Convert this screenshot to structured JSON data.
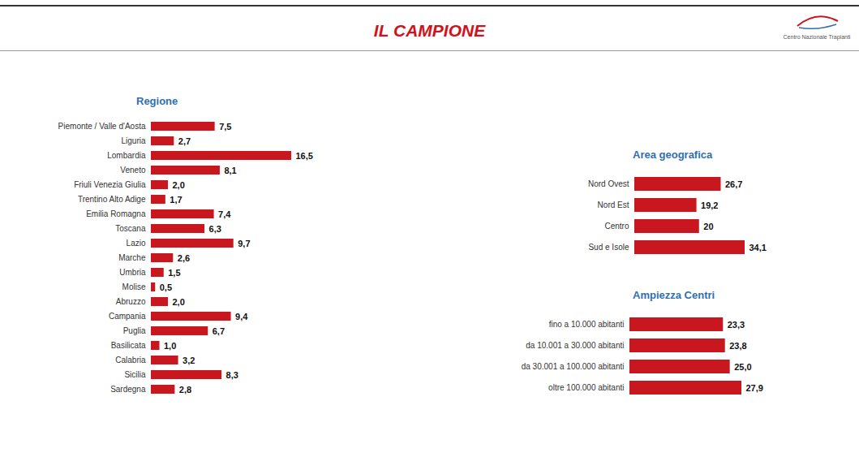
{
  "title": "IL CAMPIONE",
  "logo_text": "Centro Nazionale Trapianti",
  "chart_data": [
    {
      "type": "bar",
      "orientation": "horizontal",
      "title": "Regione",
      "categories": [
        "Piemonte / Valle d'Aosta",
        "Liguria",
        "Lombardia",
        "Veneto",
        "Friuli Venezia Giulia",
        "Trentino Alto Adige",
        "Emilia Romagna",
        "Toscana",
        "Lazio",
        "Marche",
        "Umbria",
        "Molise",
        "Abruzzo",
        "Campania",
        "Puglia",
        "Basilicata",
        "Calabria",
        "Sicilia",
        "Sardegna"
      ],
      "values": [
        7.5,
        2.7,
        16.5,
        8.1,
        2.0,
        1.7,
        7.4,
        6.3,
        9.7,
        2.6,
        1.5,
        0.5,
        2.0,
        9.4,
        6.7,
        1.0,
        3.2,
        8.3,
        2.8
      ],
      "value_labels": [
        "7,5",
        "2,7",
        "16,5",
        "8,1",
        "2,0",
        "1,7",
        "7,4",
        "6,3",
        "9,7",
        "2,6",
        "1,5",
        "0,5",
        "2,0",
        "9,4",
        "6,7",
        "1,0",
        "3,2",
        "8,3",
        "2,8"
      ],
      "color": "#c8171e",
      "data_labels": true,
      "tick_labels": "y"
    },
    {
      "type": "bar",
      "orientation": "horizontal",
      "title": "Area geografica",
      "categories": [
        "Nord Ovest",
        "Nord Est",
        "Centro",
        "Sud e Isole"
      ],
      "values": [
        26.7,
        19.2,
        20,
        34.1
      ],
      "value_labels": [
        "26,7",
        "19,2",
        "20",
        "34,1"
      ],
      "color": "#c8171e",
      "data_labels": true,
      "tick_labels": "y"
    },
    {
      "type": "bar",
      "orientation": "horizontal",
      "title": "Ampiezza Centri",
      "categories": [
        "fino a 10.000 abitanti",
        "da 10.001 a 30.000 abitanti",
        "da 30.001 a 100.000 abitanti",
        "oltre 100.000 abitanti"
      ],
      "values": [
        23.3,
        23.8,
        25.0,
        27.9
      ],
      "value_labels": [
        "23,3",
        "23,8",
        "25,0",
        "27,9"
      ],
      "color": "#c8171e",
      "data_labels": true,
      "tick_labels": "y"
    }
  ]
}
